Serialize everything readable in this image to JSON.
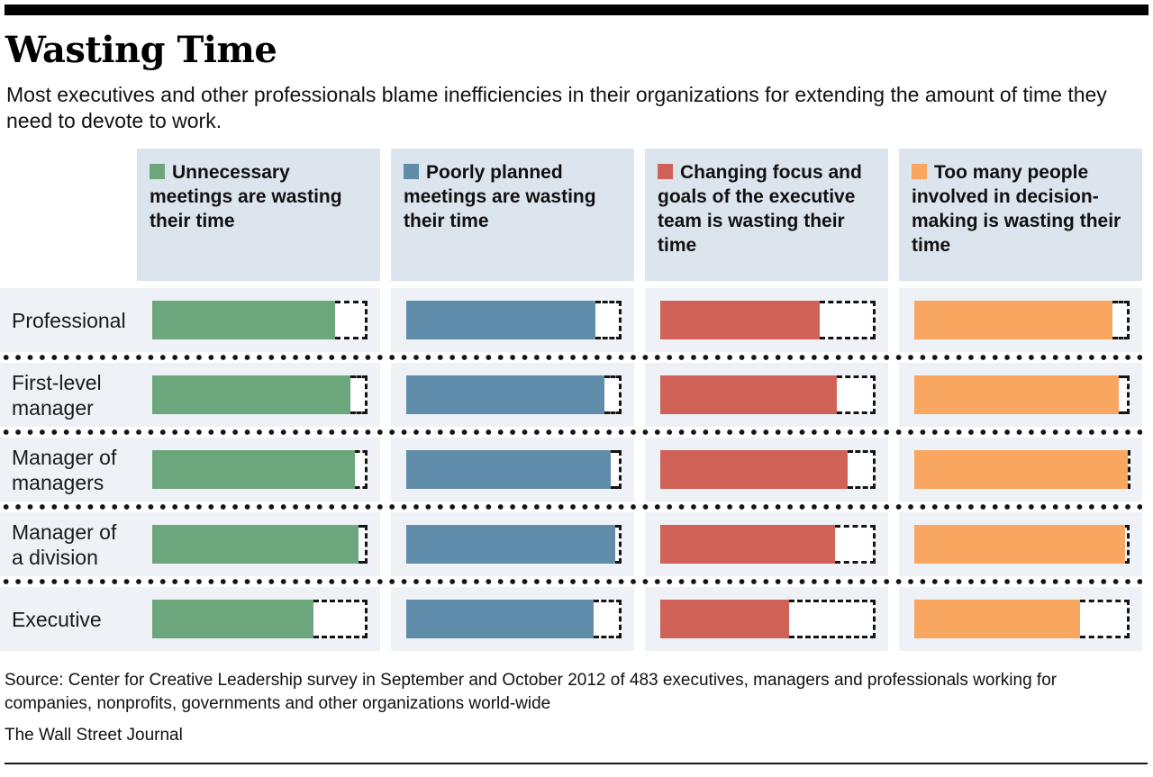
{
  "header": {
    "title": "Wasting Time",
    "subtitle": "Most executives and other professionals blame inefficiencies in their organizations for extending the amount of time they need to devote to work."
  },
  "footer": {
    "source": "Source: Center for Creative Leadership survey in September and October 2012 of 483 executives, managers and professionals working for companies, nonprofits, governments and other organizations world-wide",
    "credit": "The Wall Street Journal"
  },
  "colors": {
    "header_cell_bg": "#dce4ed",
    "row_band_bg": "#eef1f6",
    "dash_outline": "#141414",
    "green": "#6ca67d",
    "blue": "#5e8ca9",
    "red": "#d06157",
    "orange": "#f9a660"
  },
  "chart_data": {
    "type": "bar",
    "orientation": "horizontal",
    "value_axis_note": "bars unlabeled; dashed outline box marks 100% of respondents",
    "xlim": [
      0,
      100
    ],
    "grid": false,
    "legend_position": "column headers",
    "categories": [
      "Professional",
      "First-level manager",
      "Manager of managers",
      "Manager of a division",
      "Executive"
    ],
    "series": [
      {
        "name": "Unnecessary meetings are wasting their time",
        "color": "#6ca67d",
        "values": [
          85,
          92,
          94,
          96,
          75
        ]
      },
      {
        "name": "Poorly planned meetings are wasting their time",
        "color": "#5e8ca9",
        "values": [
          88,
          92,
          95,
          97,
          87
        ]
      },
      {
        "name": "Changing focus and goals of the executive team is wasting their time",
        "color": "#d06157",
        "values": [
          74,
          82,
          87,
          81,
          60
        ]
      },
      {
        "name": "Too many people involved in decision-making is wasting their time",
        "color": "#f9a660",
        "values": [
          92,
          95,
          99,
          98,
          77
        ]
      }
    ]
  }
}
